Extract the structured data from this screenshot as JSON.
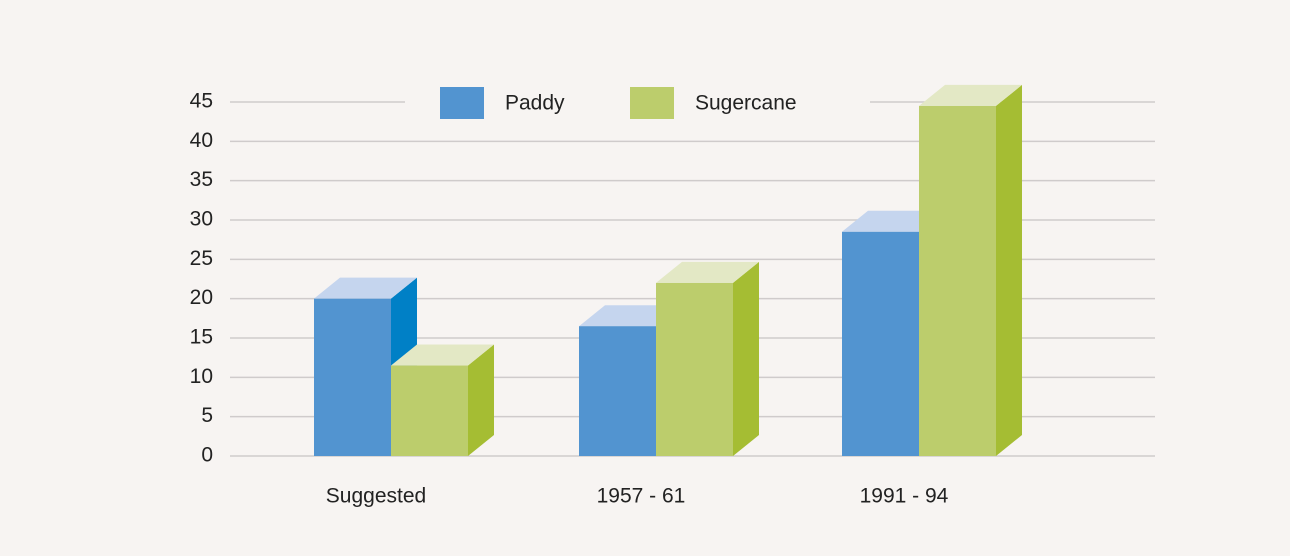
{
  "chart_data": {
    "type": "bar3d",
    "categories": [
      "Suggested",
      "1957 - 61",
      "1991 - 94"
    ],
    "series": [
      {
        "name": "Paddy",
        "color": "#5294d0",
        "top_color": "#c5d5ee",
        "side_color": "#0080c6",
        "values": [
          20,
          16.5,
          28.5
        ]
      },
      {
        "name": "Sugercane",
        "color": "#bccd6c",
        "top_color": "#e3e8c5",
        "side_color": "#a5bd33",
        "values": [
          11.5,
          22,
          44.5
        ]
      }
    ],
    "ylim": [
      0,
      45
    ],
    "yticks": [
      0,
      5,
      10,
      15,
      20,
      25,
      30,
      35,
      40,
      45
    ],
    "grid": true,
    "legend": "top"
  }
}
